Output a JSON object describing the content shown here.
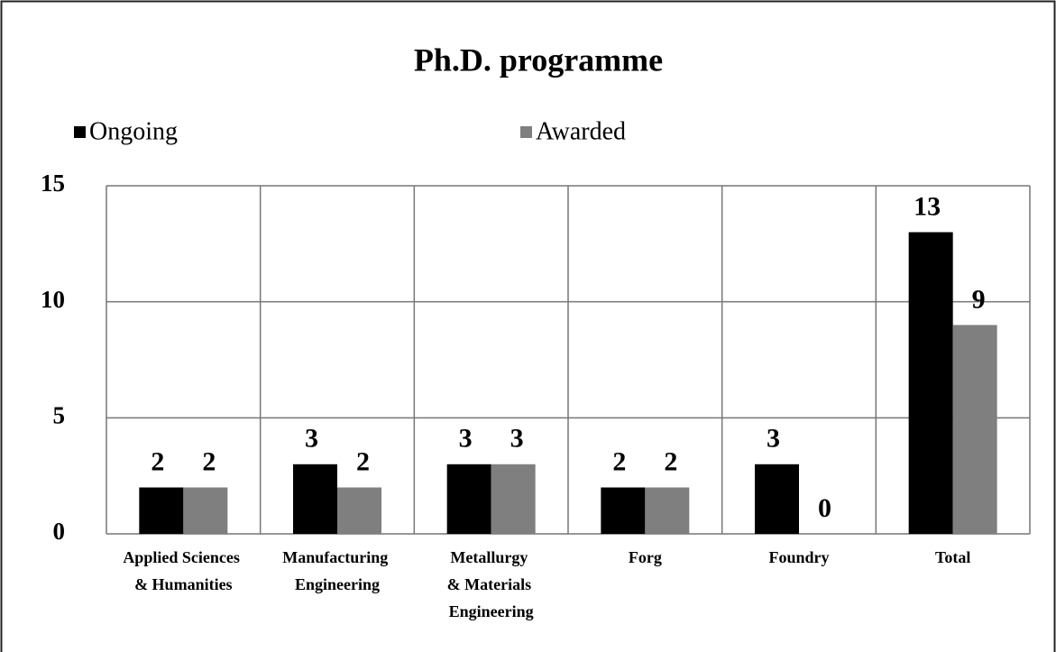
{
  "chart_data": {
    "type": "bar",
    "title": "Ph.D. programme",
    "categories": [
      "Applied Sciences & Humanities",
      "Manufacturing Engineering",
      "Metallurgy & Materials Engineering",
      "Forg",
      "Foundry",
      "Total"
    ],
    "series": [
      {
        "name": "Ongoing",
        "color": "#000000",
        "values": [
          2,
          3,
          3,
          2,
          3,
          13
        ]
      },
      {
        "name": "Awarded",
        "color": "#7f7f7f",
        "values": [
          2,
          2,
          3,
          2,
          0,
          9
        ]
      }
    ],
    "ylim": [
      0,
      15
    ],
    "yticks": [
      0,
      5,
      10,
      15
    ],
    "grid": true,
    "legend": "top"
  }
}
